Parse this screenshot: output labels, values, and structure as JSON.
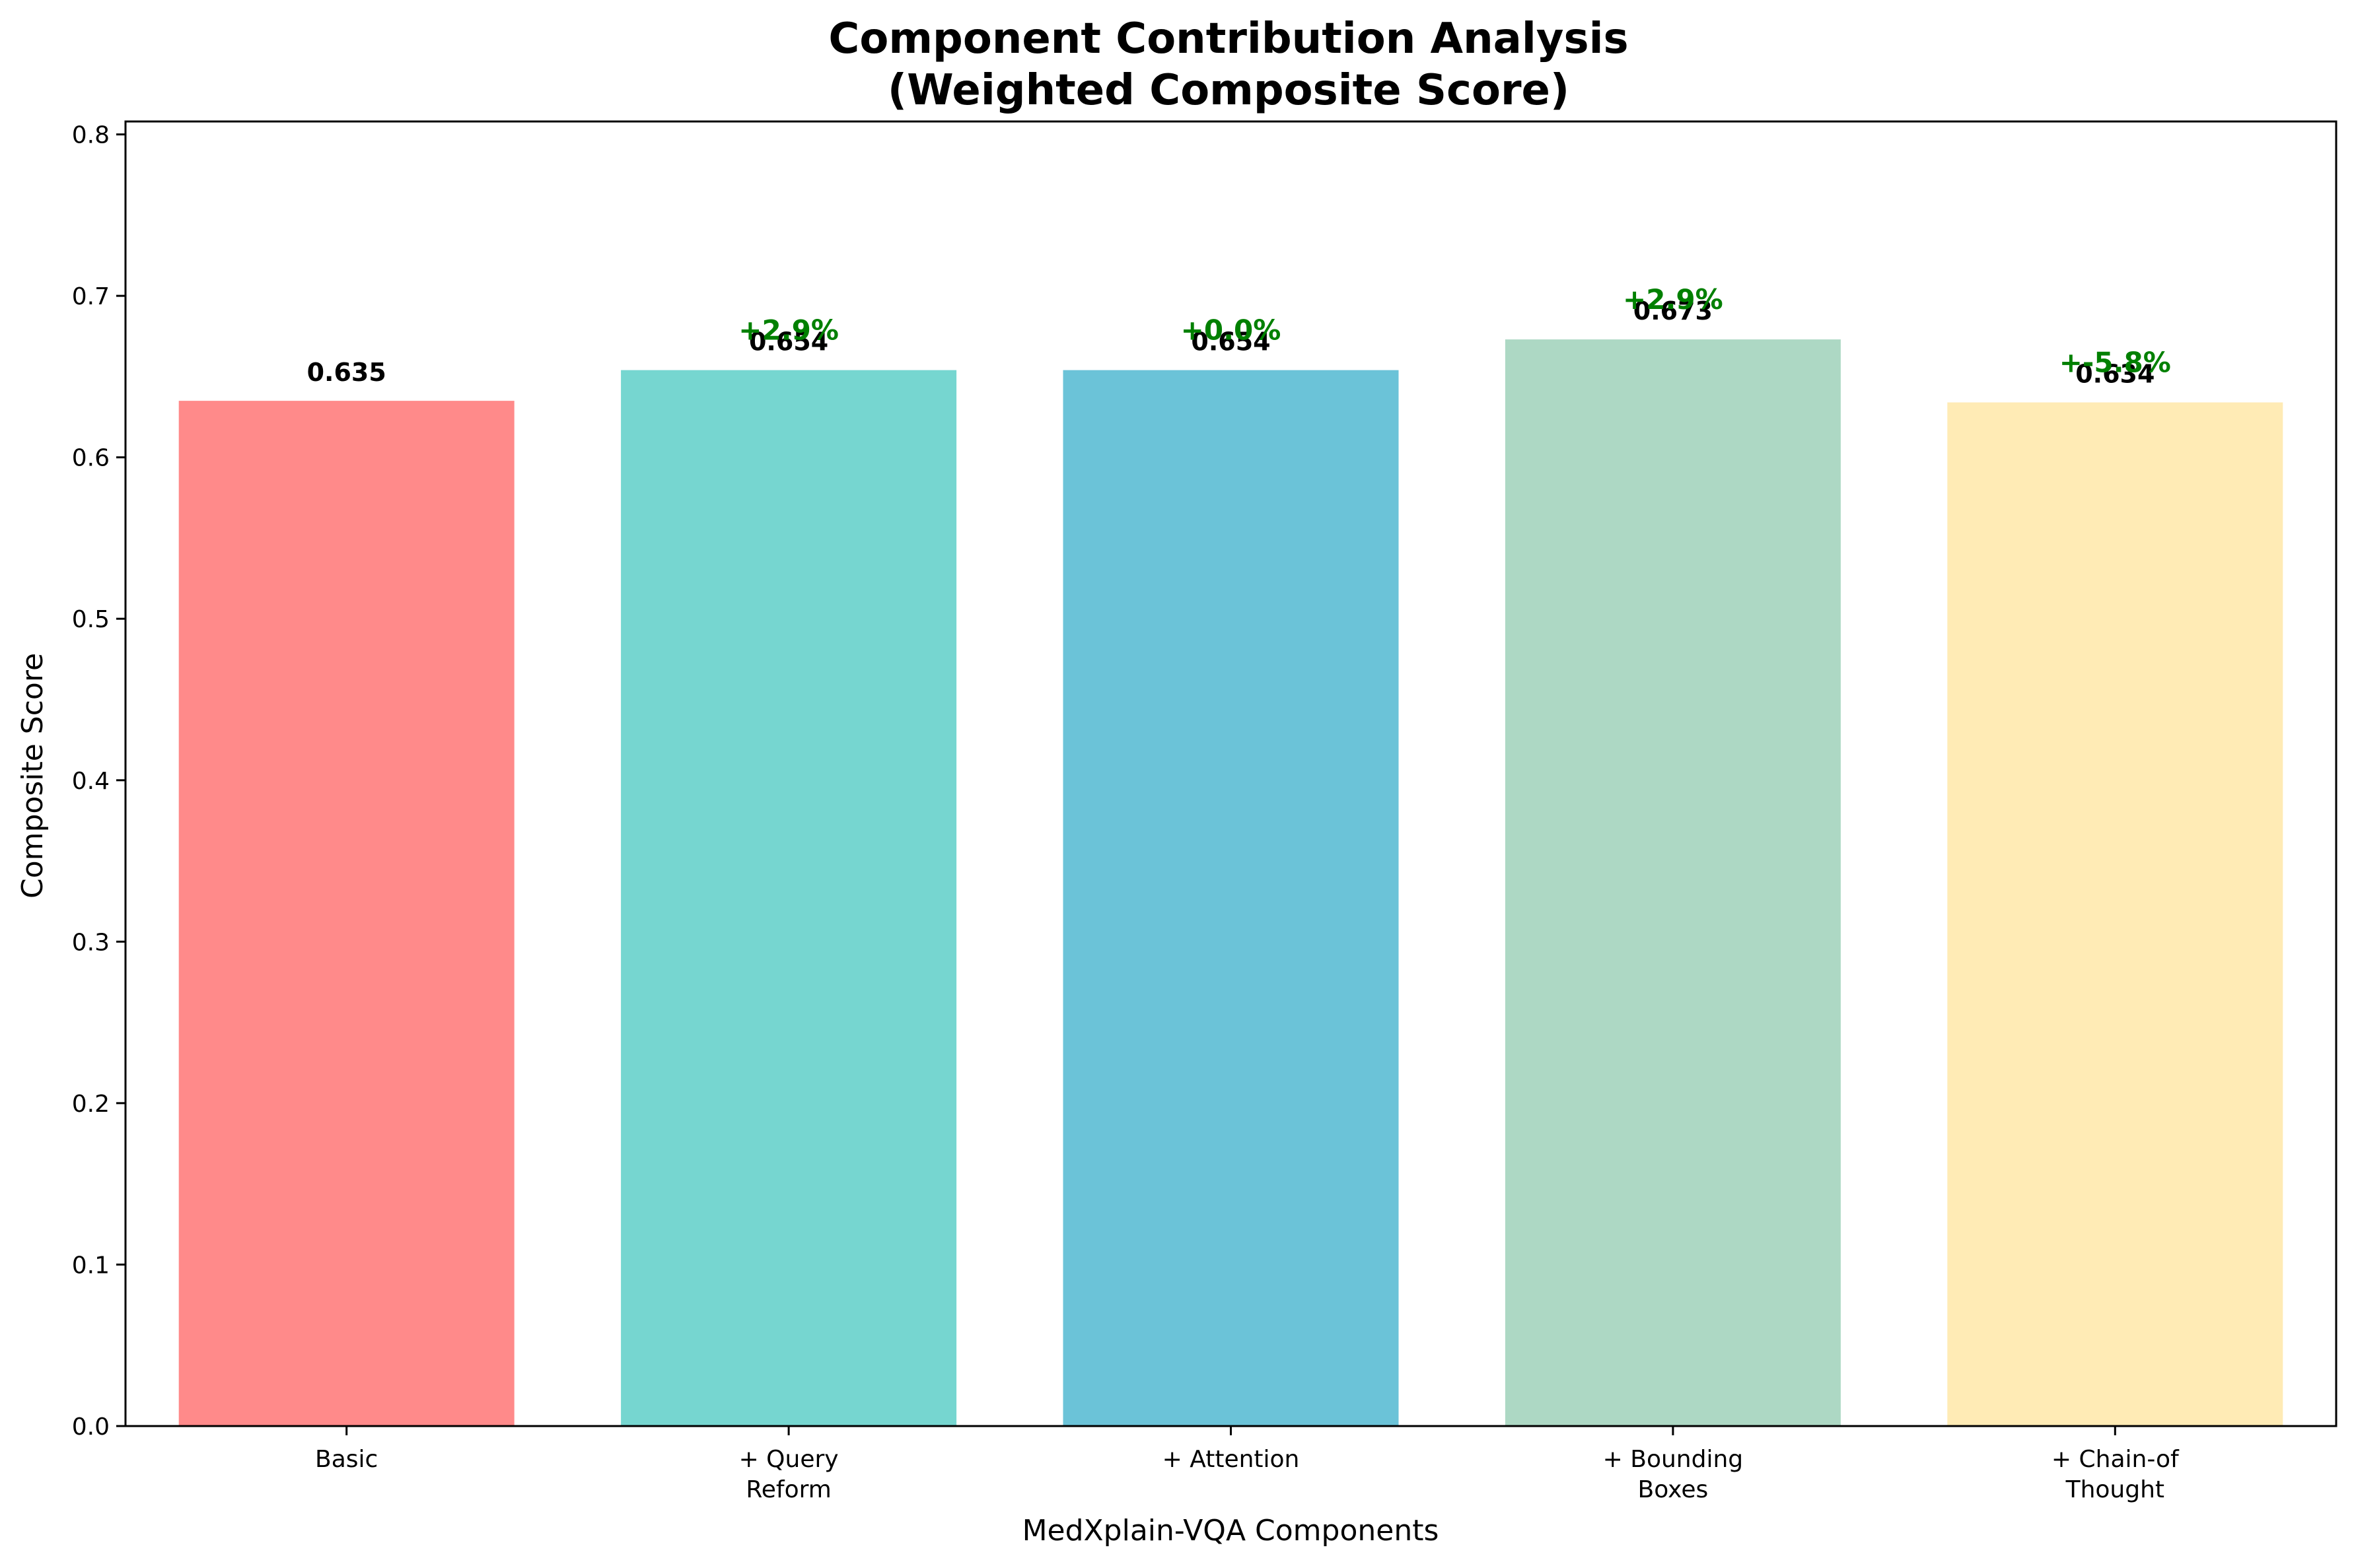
{
  "chart_data": {
    "type": "bar",
    "title": [
      "Component Contribution Analysis",
      "(Weighted Composite Score)"
    ],
    "xlabel": "MedXplain-VQA Components",
    "ylabel": "Composite Score",
    "ylim": [
      0,
      0.808
    ],
    "yticks": [
      0.0,
      0.1,
      0.2,
      0.3,
      0.4,
      0.5,
      0.6,
      0.7,
      0.8
    ],
    "ytick_labels": [
      "0.0",
      "0.1",
      "0.2",
      "0.3",
      "0.4",
      "0.5",
      "0.6",
      "0.7",
      "0.8"
    ],
    "grid": false,
    "legend": "none",
    "categories": [
      [
        "Basic"
      ],
      [
        "+ Query",
        "Reform"
      ],
      [
        "+ Attention"
      ],
      [
        "+ Bounding",
        "Boxes"
      ],
      [
        "+ Chain-of",
        "Thought"
      ]
    ],
    "values": [
      0.635,
      0.654,
      0.654,
      0.673,
      0.634
    ],
    "value_labels": [
      "0.635",
      "0.654",
      "0.654",
      "0.673",
      "0.634"
    ],
    "delta_labels": [
      "",
      "+2.9%",
      "+0.0%",
      "+2.9%",
      "+-5.8%"
    ],
    "colors": [
      "#FF8A8A",
      "#76D6D0",
      "#6BC3D8",
      "#ADD8C4",
      "#FFEBB5"
    ],
    "delta_color": "#008000"
  }
}
